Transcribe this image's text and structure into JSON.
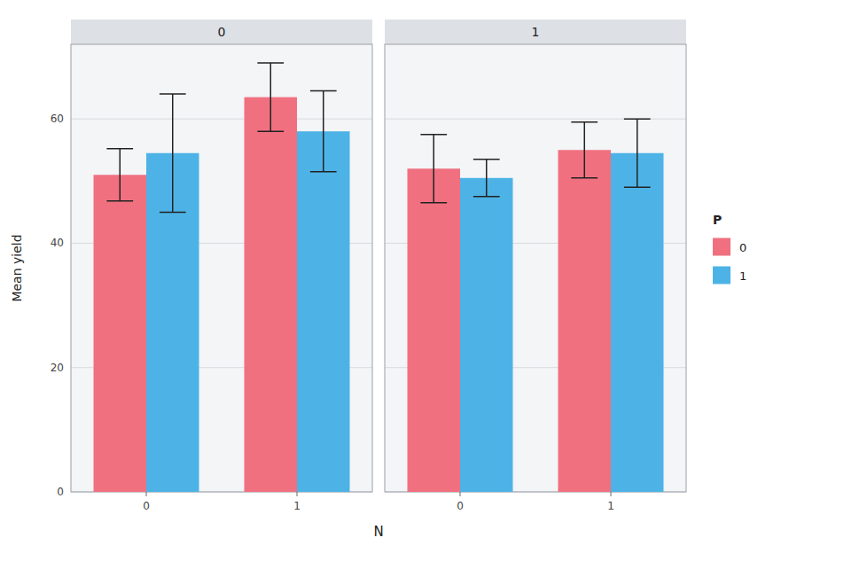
{
  "chart_data": [
    {
      "type": "bar",
      "title": "0",
      "xlabel": "N",
      "ylabel": "Mean yield",
      "categories": [
        "0",
        "1"
      ],
      "series": [
        {
          "name": "0",
          "color": "#F07080",
          "values": [
            51.0,
            63.5
          ],
          "errors": [
            4.2,
            5.5
          ]
        },
        {
          "name": "1",
          "color": "#4DB3E6",
          "values": [
            54.5,
            58.0
          ],
          "errors": [
            9.5,
            6.5
          ]
        }
      ],
      "ylim": [
        0,
        72
      ],
      "yticks": [
        0,
        20,
        40,
        60
      ],
      "grid": true,
      "legend": "right",
      "legend_title": "P"
    },
    {
      "type": "bar",
      "title": "1",
      "categories": [
        "0",
        "1"
      ],
      "series": [
        {
          "name": "0",
          "color": "#F07080",
          "values": [
            52.0,
            55.0
          ],
          "errors": [
            5.5,
            4.5
          ]
        },
        {
          "name": "1",
          "color": "#4DB3E6",
          "values": [
            50.5,
            54.5
          ],
          "errors": [
            3.0,
            5.5
          ]
        }
      ],
      "ylim": [
        0,
        72
      ],
      "yticks": [
        0,
        20,
        40,
        60
      ],
      "grid": true,
      "tick_labels": "x"
    }
  ]
}
